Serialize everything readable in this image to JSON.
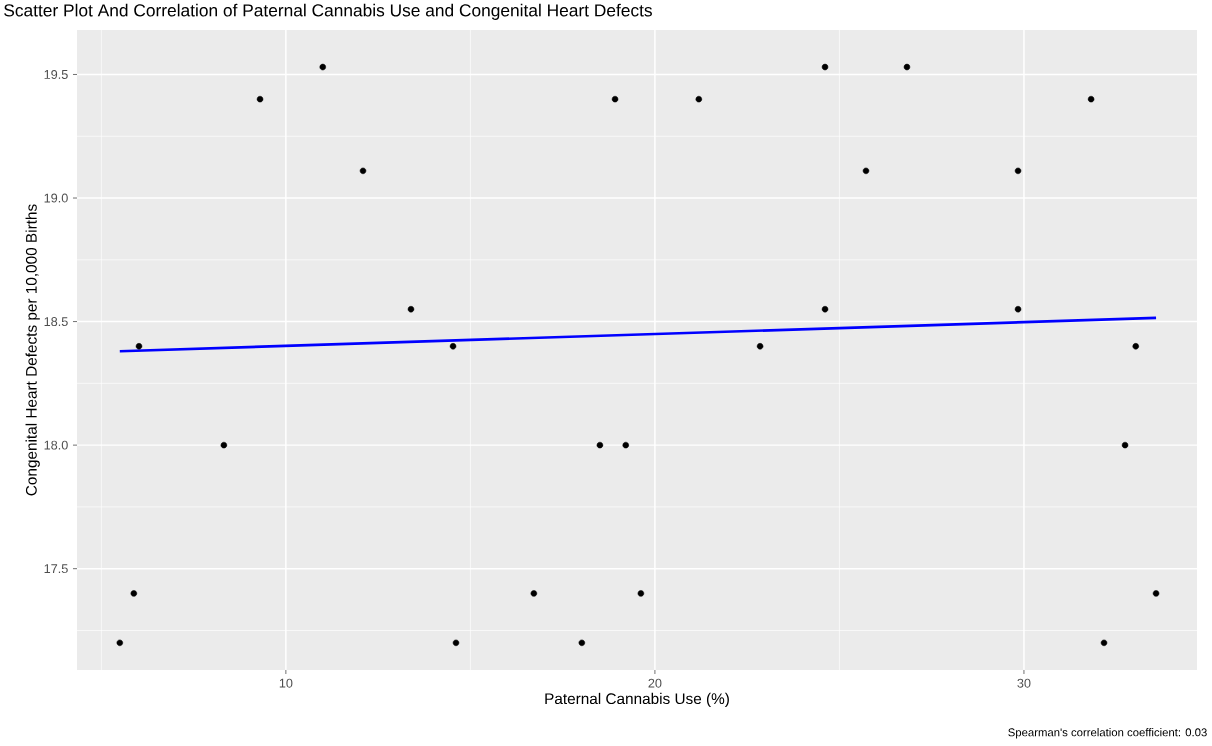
{
  "chart_data": {
    "type": "scatter",
    "title": "Scatter Plot And Correlation of Paternal Cannabis Use and Congenital Heart Defects",
    "xlabel": "Paternal Cannabis Use (%)",
    "ylabel": "Congenital Heart Defects per 10,000 Births",
    "annotations": [
      "Spearman's correlation coefficient:  0.03"
    ],
    "series": [
      {
        "color": "#000000",
        "marker": "circle",
        "x": [
          5.5,
          5.88,
          6.02,
          8.32,
          9.3,
          11.0,
          12.09,
          13.39,
          14.53,
          14.61,
          16.72,
          18.02,
          18.51,
          18.92,
          19.21,
          19.62,
          21.19,
          22.85,
          24.61,
          24.61,
          25.72,
          26.83,
          29.84,
          29.84,
          31.82,
          32.17,
          32.74,
          33.03,
          33.58
        ],
        "values": [
          17.2,
          17.4,
          18.4,
          18.0,
          19.4,
          19.53,
          19.11,
          18.55,
          18.4,
          17.2,
          17.4,
          17.2,
          18.0,
          19.4,
          18.0,
          17.4,
          19.4,
          18.4,
          19.53,
          18.55,
          19.11,
          19.53,
          19.11,
          18.55,
          19.4,
          17.2,
          18.0,
          18.4,
          17.4
        ]
      },
      {
        "type": "line",
        "color": "#0000ff",
        "x": [
          5.5,
          33.58
        ],
        "values": [
          18.38,
          18.515
        ]
      }
    ],
    "xlim": [
      4.34,
      34.69
    ],
    "ylim": [
      17.09,
      19.68
    ],
    "xticks": [
      10,
      20,
      30
    ],
    "yticks": [
      {
        "value": 17.5,
        "label": "17.5"
      },
      {
        "value": 18.0,
        "label": "18.0"
      },
      {
        "value": 18.5,
        "label": "18.5"
      },
      {
        "value": 19.0,
        "label": "19.0"
      },
      {
        "value": 19.5,
        "label": "19.5"
      }
    ],
    "grid": true
  }
}
